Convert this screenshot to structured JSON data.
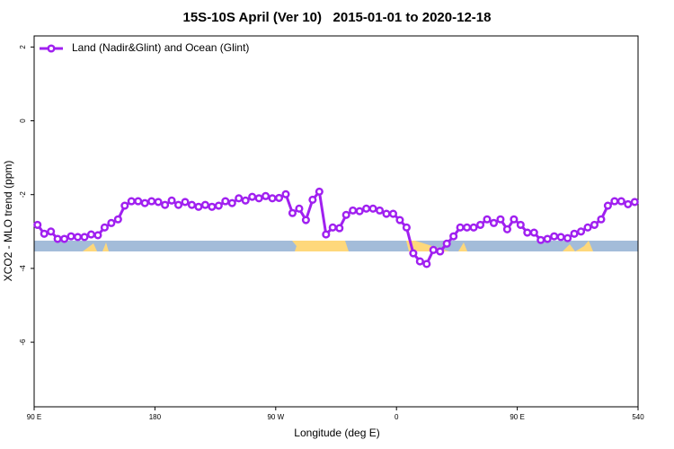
{
  "chart_data": {
    "type": "line",
    "title": "15S-10S April (Ver 10)   2015-01-01 to 2020-12-18",
    "x_label": "Longitude (deg E)",
    "y_label": "XCO2 - MLO trend (ppm)",
    "xlim": [
      90,
      540
    ],
    "ylim": [
      -7.75,
      2.3
    ],
    "xticks": [
      {
        "value": 90,
        "label": "90 E"
      },
      180,
      {
        "value": 270,
        "label": "90 W"
      },
      {
        "value": 360,
        "label": "0"
      },
      {
        "value": 450,
        "label": "90 E"
      },
      540
    ],
    "yticks": [
      2,
      0,
      -2,
      -4,
      -6
    ],
    "legend": "top-left",
    "x": [
      92.5,
      97.5,
      102.5,
      107.5,
      112.5,
      117.5,
      122.5,
      127.5,
      132.5,
      137.5,
      142.5,
      147.5,
      152.5,
      157.5,
      162.5,
      167.5,
      172.5,
      177.5,
      182.5,
      187.5,
      192.5,
      197.5,
      202.5,
      207.5,
      212.5,
      217.5,
      222.5,
      227.5,
      232.5,
      237.5,
      242.5,
      247.5,
      252.5,
      257.5,
      262.5,
      267.5,
      272.5,
      277.5,
      282.5,
      287.5,
      292.5,
      297.5,
      302.5,
      307.5,
      312.5,
      317.5,
      322.5,
      327.5,
      332.5,
      337.5,
      342.5,
      347.5,
      352.5,
      357.5,
      362.5,
      367.5,
      372.5,
      377.5,
      382.5,
      387.5,
      392.5,
      397.5,
      402.5,
      407.5,
      412.5,
      417.5,
      422.5,
      427.5,
      432.5,
      437.5,
      442.5,
      447.5,
      452.5,
      457.5,
      462.5,
      467.5,
      472.5,
      477.5,
      482.5,
      487.5,
      492.5,
      497.5,
      502.5,
      507.5,
      512.5,
      517.5,
      522.5,
      527.5,
      532.5,
      537.5
    ],
    "series": [
      {
        "name": "Land (Nadir&Glint) and Ocean (Glint)",
        "color": "#a020f0",
        "values": [
          -2.82,
          -3.06,
          -3.0,
          -3.2,
          -3.2,
          -3.13,
          -3.15,
          -3.15,
          -3.08,
          -3.1,
          -2.89,
          -2.77,
          -2.67,
          -2.3,
          -2.18,
          -2.18,
          -2.23,
          -2.18,
          -2.2,
          -2.28,
          -2.16,
          -2.28,
          -2.2,
          -2.28,
          -2.33,
          -2.28,
          -2.33,
          -2.3,
          -2.18,
          -2.23,
          -2.1,
          -2.16,
          -2.06,
          -2.1,
          -2.04,
          -2.1,
          -2.09,
          -1.99,
          -2.5,
          -2.38,
          -2.69,
          -2.14,
          -1.92,
          -3.08,
          -2.89,
          -2.91,
          -2.55,
          -2.43,
          -2.45,
          -2.38,
          -2.38,
          -2.43,
          -2.52,
          -2.52,
          -2.69,
          -2.89,
          -3.59,
          -3.81,
          -3.88,
          -3.5,
          -3.54,
          -3.33,
          -3.13,
          -2.89,
          -2.89,
          -2.89,
          -2.82,
          -2.67,
          -2.77,
          -2.67,
          -2.94,
          -2.67,
          -2.82,
          -3.03,
          -3.03,
          -3.23,
          -3.2,
          -3.13,
          -3.15,
          -3.18,
          -3.06,
          -3.0,
          -2.89,
          -2.82,
          -2.67,
          -2.3,
          -2.18,
          -2.18,
          -2.26,
          -2.2
        ]
      }
    ]
  }
}
